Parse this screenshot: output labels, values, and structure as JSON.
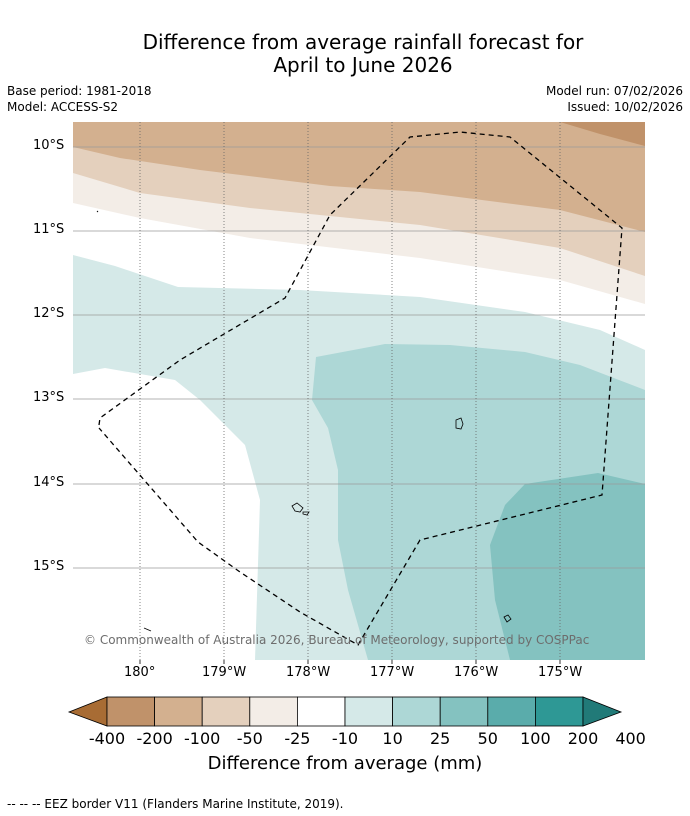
{
  "title": {
    "line1": "Difference from average rainfall forecast for",
    "line2": "April to June 2026"
  },
  "meta": {
    "base_period": "Base period: 1981-2018",
    "model": "Model: ACCESS-S2",
    "model_run": "Model run: 07/02/2026",
    "issued": "Issued: 10/02/2026"
  },
  "map": {
    "lat_labels": [
      "10°S",
      "11°S",
      "12°S",
      "13°S",
      "14°S",
      "15°S"
    ],
    "lon_labels": [
      "180°",
      "179°W",
      "178°W",
      "177°W",
      "176°W",
      "175°W"
    ],
    "credit": "© Commonwealth of Australia 2026, Bureau of Meteorology, supported by COSPPac"
  },
  "colorbar": {
    "ticks": [
      "-400",
      "-200",
      "-100",
      "-50",
      "-25",
      "-10",
      "10",
      "25",
      "50",
      "100",
      "200",
      "400"
    ],
    "colors": [
      "#a86c34",
      "#c0926a",
      "#d3b08f",
      "#e4d0bd",
      "#f3ede7",
      "#ffffff",
      "#d5e9e8",
      "#add7d6",
      "#84c2c0",
      "#5aacab",
      "#2e9895",
      "#217a78"
    ],
    "label": "Difference from average (mm)"
  },
  "footer": "--  --  -- EEZ border V11 (Flanders Marine Institute, 2019)."
}
